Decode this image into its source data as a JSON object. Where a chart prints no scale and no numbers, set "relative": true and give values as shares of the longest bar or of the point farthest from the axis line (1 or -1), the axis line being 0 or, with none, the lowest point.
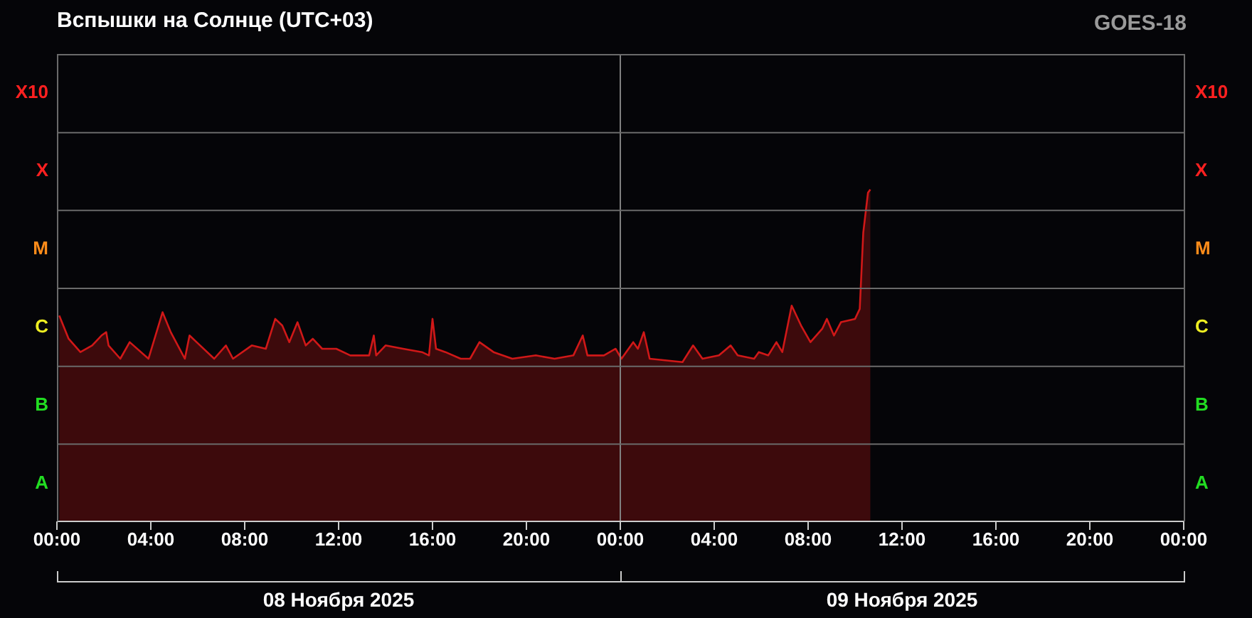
{
  "chart_data": {
    "type": "area",
    "title": "Вспышки на Солнце (UTC+03)",
    "subtitle": "GOES-18",
    "relative": true,
    "annotations": [
      "08 Ноября 2025",
      "09 Ноября 2025",
      "A",
      "B",
      "C",
      "M",
      "X",
      "X10",
      "A",
      "B",
      "C",
      "M",
      "X",
      "X10"
    ],
    "x": [
      "2025-11-08T00:06",
      "2025-11-08T00:30",
      "2025-11-08T01:00",
      "2025-11-08T01:30",
      "2025-11-08T01:54",
      "2025-11-08T02:06",
      "2025-11-08T02:12",
      "2025-11-08T02:42",
      "2025-11-08T03:06",
      "2025-11-08T03:54",
      "2025-11-08T04:30",
      "2025-11-08T04:51",
      "2025-11-08T05:27",
      "2025-11-08T05:39",
      "2025-11-08T05:57",
      "2025-11-08T06:42",
      "2025-11-08T07:12",
      "2025-11-08T07:30",
      "2025-11-08T08:18",
      "2025-11-08T08:54",
      "2025-11-08T09:18",
      "2025-11-08T09:36",
      "2025-11-08T09:54",
      "2025-11-08T10:15",
      "2025-11-08T10:36",
      "2025-11-08T10:54",
      "2025-11-08T11:18",
      "2025-11-08T11:54",
      "2025-11-08T12:30",
      "2025-11-08T13:18",
      "2025-11-08T13:30",
      "2025-11-08T13:36",
      "2025-11-08T14:00",
      "2025-11-08T14:45",
      "2025-11-08T15:33",
      "2025-11-08T15:51",
      "2025-11-08T16:00",
      "2025-11-08T16:09",
      "2025-11-08T16:33",
      "2025-11-08T17:12",
      "2025-11-08T17:36",
      "2025-11-08T18:00",
      "2025-11-08T18:36",
      "2025-11-08T19:24",
      "2025-11-08T20:24",
      "2025-11-08T21:12",
      "2025-11-08T22:00",
      "2025-11-08T22:24",
      "2025-11-08T22:36",
      "2025-11-08T23:18",
      "2025-11-08T23:48",
      "2025-11-09T00:03",
      "2025-11-09T00:33",
      "2025-11-09T00:45",
      "2025-11-09T01:00",
      "2025-11-09T01:15",
      "2025-11-09T02:39",
      "2025-11-09T03:06",
      "2025-11-09T03:30",
      "2025-11-09T04:12",
      "2025-11-09T04:42",
      "2025-11-09T05:00",
      "2025-11-09T05:42",
      "2025-11-09T05:54",
      "2025-11-09T06:18",
      "2025-11-09T06:39",
      "2025-11-09T06:54",
      "2025-11-09T07:18",
      "2025-11-09T07:42",
      "2025-11-09T08:06",
      "2025-11-09T08:36",
      "2025-11-09T08:48",
      "2025-11-09T09:06",
      "2025-11-09T09:24",
      "2025-11-09T10:00",
      "2025-11-09T10:12",
      "2025-11-09T10:21",
      "2025-11-09T10:33",
      "2025-11-09T10:39"
    ],
    "series": [
      {
        "color": "#d01818",
        "values": [
          0.62,
          0.55,
          0.51,
          0.53,
          0.56,
          0.57,
          0.53,
          0.49,
          0.54,
          0.49,
          0.63,
          0.57,
          0.49,
          0.56,
          0.54,
          0.49,
          0.53,
          0.49,
          0.53,
          0.52,
          0.61,
          0.59,
          0.54,
          0.6,
          0.53,
          0.55,
          0.52,
          0.52,
          0.5,
          0.5,
          0.56,
          0.5,
          0.53,
          0.52,
          0.51,
          0.5,
          0.61,
          0.52,
          0.51,
          0.49,
          0.49,
          0.54,
          0.51,
          0.49,
          0.5,
          0.49,
          0.5,
          0.56,
          0.5,
          0.5,
          0.52,
          0.49,
          0.54,
          0.52,
          0.57,
          0.49,
          0.48,
          0.53,
          0.49,
          0.5,
          0.53,
          0.5,
          0.49,
          0.51,
          0.5,
          0.54,
          0.51,
          0.65,
          0.59,
          0.54,
          0.58,
          0.61,
          0.56,
          0.6,
          0.61,
          0.64,
          0.87,
          0.99,
          1
        ]
      }
    ],
    "xlim": [
      "2025-11-08T00:00",
      "2025-11-10T00:00"
    ],
    "xticks": [
      {
        "value": "2025-11-08T00:00",
        "label": "00:00"
      },
      {
        "value": "2025-11-08T04:00",
        "label": "04:00"
      },
      {
        "value": "2025-11-08T08:00",
        "label": "08:00"
      },
      {
        "value": "2025-11-08T12:00",
        "label": "12:00"
      },
      {
        "value": "2025-11-08T16:00",
        "label": "16:00"
      },
      {
        "value": "2025-11-08T20:00",
        "label": "20:00"
      },
      {
        "value": "2025-11-09T00:00",
        "label": "00:00"
      },
      {
        "value": "2025-11-09T04:00",
        "label": "04:00"
      },
      {
        "value": "2025-11-09T08:00",
        "label": "08:00"
      },
      {
        "value": "2025-11-09T12:00",
        "label": "12:00"
      },
      {
        "value": "2025-11-09T16:00",
        "label": "16:00"
      },
      {
        "value": "2025-11-09T20:00",
        "label": "20:00"
      },
      {
        "value": "2025-11-10T00:00",
        "label": "00:00"
      }
    ],
    "grid": "y",
    "ref_lines": [
      {
        "axis": "x",
        "value": "2025-11-09T00:00",
        "color": "#808080"
      }
    ]
  }
}
